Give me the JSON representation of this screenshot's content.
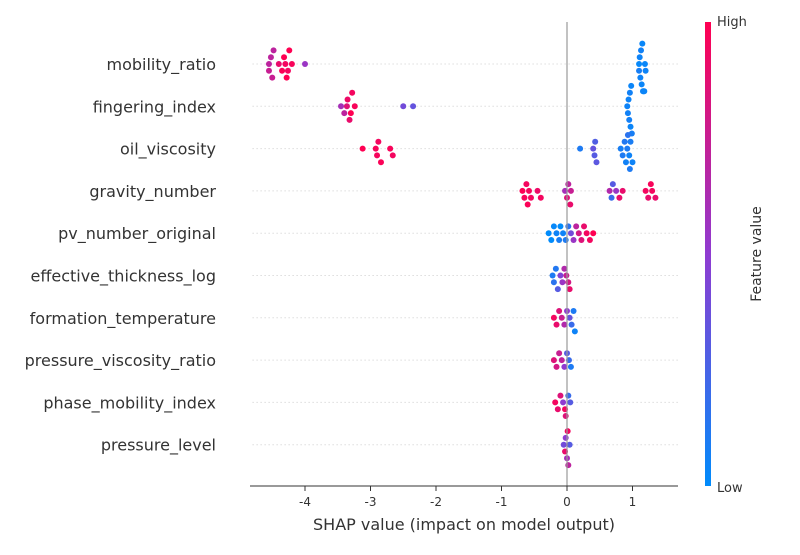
{
  "chart_data": {
    "type": "scatter",
    "subtype": "shap-beeswarm",
    "xlabel": "SHAP value (impact on model output)",
    "xlim": [
      -4.8,
      1.7
    ],
    "xticks": [
      "-4",
      "-3",
      "-2",
      "-1",
      "0",
      "1"
    ],
    "xtick_values": [
      -4,
      -3,
      -2,
      -1,
      0,
      1
    ],
    "zero_line": 0,
    "grid": "dotted row guides",
    "colorbar": {
      "title": "Feature value",
      "high_label": "High",
      "low_label": "Low",
      "low_color": "#008bfb",
      "mid_color": "#8f3bd1",
      "high_color": "#ff0052"
    },
    "features": [
      {
        "name": "mobility_ratio",
        "points": [
          [
            -4.55,
            0.7
          ],
          [
            -4.52,
            0.7
          ],
          [
            -4.48,
            0.7
          ],
          [
            -4.55,
            0.75
          ],
          [
            -4.5,
            0.75
          ],
          [
            -4.32,
            1
          ],
          [
            -4.28,
            1
          ],
          [
            -4.24,
            1
          ],
          [
            -4.3,
            0.95
          ],
          [
            -4.35,
            0.98
          ],
          [
            -4.26,
            0.95
          ],
          [
            -4.4,
            0.9
          ],
          [
            -4.2,
            0.97
          ],
          [
            -4.0,
            0.55
          ],
          [
            1.1,
            0.02
          ],
          [
            1.12,
            0.05
          ],
          [
            1.15,
            0.03
          ],
          [
            1.18,
            0.04
          ],
          [
            1.13,
            0.06
          ],
          [
            1.16,
            0.02
          ],
          [
            1.2,
            0.05
          ],
          [
            1.1,
            0.08
          ],
          [
            1.14,
            0.04
          ],
          [
            1.17,
            0.07
          ],
          [
            1.19,
            0.03
          ],
          [
            1.11,
            0.05
          ]
        ]
      },
      {
        "name": "fingering_index",
        "points": [
          [
            -3.45,
            0.6
          ],
          [
            -3.4,
            0.7
          ],
          [
            -3.36,
            0.85
          ],
          [
            -3.32,
            0.9
          ],
          [
            -3.28,
            0.95
          ],
          [
            -3.3,
            1
          ],
          [
            -3.24,
            0.97
          ],
          [
            -3.35,
            0.92
          ],
          [
            -2.5,
            0.4
          ],
          [
            -2.35,
            0.35
          ],
          [
            0.92,
            0.05
          ],
          [
            0.95,
            0.07
          ],
          [
            0.98,
            0.04
          ],
          [
            0.96,
            0.06
          ],
          [
            0.94,
            0.05
          ],
          [
            0.99,
            0.08
          ],
          [
            0.93,
            0.06
          ],
          [
            0.97,
            0.04
          ]
        ]
      },
      {
        "name": "oil_viscosity",
        "points": [
          [
            -3.12,
            1
          ],
          [
            -2.92,
            0.97
          ],
          [
            -2.88,
            0.95
          ],
          [
            -2.84,
            0.98
          ],
          [
            -2.9,
            0.96
          ],
          [
            -2.7,
            0.97
          ],
          [
            -2.66,
            0.95
          ],
          [
            0.2,
            0.1
          ],
          [
            0.42,
            0.3
          ],
          [
            0.4,
            0.35
          ],
          [
            0.45,
            0.32
          ],
          [
            0.43,
            0.28
          ],
          [
            0.82,
            0.08
          ],
          [
            0.85,
            0.1
          ],
          [
            0.9,
            0.06
          ],
          [
            0.92,
            0.1
          ],
          [
            0.95,
            0.05
          ],
          [
            0.97,
            0.09
          ],
          [
            1.0,
            0.05
          ],
          [
            0.88,
            0.12
          ],
          [
            0.93,
            0.15
          ],
          [
            0.96,
            0.1
          ]
        ]
      },
      {
        "name": "gravity_number",
        "points": [
          [
            -0.65,
            0.97
          ],
          [
            -0.62,
            0.95
          ],
          [
            -0.6,
            0.98
          ],
          [
            -0.58,
            0.96
          ],
          [
            -0.55,
            0.95
          ],
          [
            -0.68,
            0.99
          ],
          [
            -0.45,
            0.92
          ],
          [
            -0.4,
            0.95
          ],
          [
            -0.03,
            0.6
          ],
          [
            0.0,
            0.85
          ],
          [
            0.02,
            0.7
          ],
          [
            0.05,
            0.9
          ],
          [
            0.06,
            0.75
          ],
          [
            0.65,
            0.65
          ],
          [
            0.68,
            0.2
          ],
          [
            0.7,
            0.3
          ],
          [
            0.75,
            0.55
          ],
          [
            0.8,
            0.9
          ],
          [
            0.85,
            0.9
          ],
          [
            1.2,
            0.95
          ],
          [
            1.24,
            0.9
          ],
          [
            1.28,
            0.97
          ],
          [
            1.3,
            0.95
          ],
          [
            1.35,
            0.9
          ]
        ]
      },
      {
        "name": "pv_number_original",
        "points": [
          [
            -0.28,
            0.0
          ],
          [
            -0.24,
            0.0
          ],
          [
            -0.2,
            0.02
          ],
          [
            -0.16,
            0.05
          ],
          [
            -0.12,
            0.08
          ],
          [
            -0.1,
            0.0
          ],
          [
            -0.06,
            0.05
          ],
          [
            -0.02,
            0.1
          ],
          [
            0.02,
            0.15
          ],
          [
            0.06,
            0.4
          ],
          [
            0.1,
            0.55
          ],
          [
            0.14,
            0.7
          ],
          [
            0.18,
            0.8
          ],
          [
            0.22,
            0.85
          ],
          [
            0.26,
            0.9
          ],
          [
            0.3,
            0.95
          ],
          [
            0.35,
            0.95
          ],
          [
            0.4,
            1
          ]
        ]
      },
      {
        "name": "effective_thickness_log",
        "points": [
          [
            -0.22,
            0.1
          ],
          [
            -0.2,
            0.15
          ],
          [
            -0.17,
            0.12
          ],
          [
            -0.14,
            0.3
          ],
          [
            -0.1,
            0.45
          ],
          [
            -0.07,
            0.55
          ],
          [
            -0.04,
            0.65
          ],
          [
            -0.01,
            0.75
          ],
          [
            0.02,
            0.8
          ],
          [
            0.04,
            0.9
          ]
        ]
      },
      {
        "name": "formation_temperature",
        "points": [
          [
            -0.2,
            0.95
          ],
          [
            -0.16,
            0.9
          ],
          [
            -0.12,
            0.85
          ],
          [
            -0.08,
            0.75
          ],
          [
            -0.04,
            0.65
          ],
          [
            0.0,
            0.5
          ],
          [
            0.04,
            0.35
          ],
          [
            0.07,
            0.2
          ],
          [
            0.1,
            0.1
          ],
          [
            0.12,
            0.05
          ]
        ]
      },
      {
        "name": "pressure_viscosity_ratio",
        "points": [
          [
            -0.2,
            0.85
          ],
          [
            -0.16,
            0.8
          ],
          [
            -0.12,
            0.75
          ],
          [
            -0.08,
            0.7
          ],
          [
            -0.04,
            0.5
          ],
          [
            0.0,
            0.3
          ],
          [
            0.03,
            0.2
          ],
          [
            0.06,
            0.1
          ]
        ]
      },
      {
        "name": "phase_mobility_index",
        "points": [
          [
            -0.18,
            0.95
          ],
          [
            -0.14,
            0.9
          ],
          [
            -0.1,
            0.85
          ],
          [
            -0.06,
            0.5
          ],
          [
            -0.02,
            0.85
          ],
          [
            0.02,
            0.2
          ],
          [
            0.05,
            0.3
          ],
          [
            -0.03,
            0.95
          ]
        ]
      },
      {
        "name": "pressure_level",
        "points": [
          [
            -0.05,
            0.4
          ],
          [
            -0.02,
            0.5
          ],
          [
            0.0,
            0.6
          ],
          [
            0.02,
            0.7
          ],
          [
            0.04,
            0.3
          ],
          [
            -0.03,
            0.9
          ],
          [
            0.01,
            0.95
          ]
        ]
      }
    ]
  }
}
